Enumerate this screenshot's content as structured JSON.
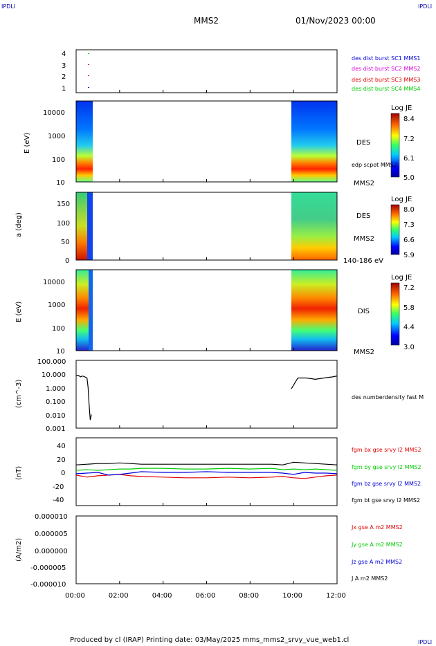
{
  "corner_labels": {
    "tl": "IPDLI",
    "tr": "IPDLI",
    "br": "IPDLI"
  },
  "header": {
    "spacecraft": "MMS2",
    "datetime": "01/Nov/2023 00:00"
  },
  "footer": {
    "text": "Produced by cl (IRAP)   Printing date: 03/May/2025   mms_mms2_srvy_vue_web1.cl"
  },
  "x_axis": {
    "ticks": [
      "00:00",
      "02:00",
      "04:00",
      "06:00",
      "08:00",
      "10:00",
      "12:00"
    ],
    "range_hours": [
      0,
      12
    ]
  },
  "colors": {
    "red": "#e00000",
    "green": "#00cc00",
    "blue": "#0000dd",
    "magenta": "#dd00dd",
    "black": "#000000"
  },
  "chart_data": [
    {
      "type": "scatter",
      "name": "burst availability",
      "yticks": [
        "4",
        "3",
        "2",
        "1"
      ],
      "legend": [
        {
          "label": "des dist burst SC1 MMS1",
          "color": "#0000dd"
        },
        {
          "label": "des dist burst SC2 MMS2",
          "color": "#dd00dd"
        },
        {
          "label": "des dist burst SC3 MMS3",
          "color": "#e00000"
        },
        {
          "label": "des dist burst SC4 MMS4",
          "color": "#00cc00"
        }
      ]
    },
    {
      "type": "heatmap",
      "name": "DES energy spectrogram",
      "ylabel": "E (eV)",
      "yscale": "log",
      "ylim": [
        10,
        30000
      ],
      "yticks": [
        "10000",
        "1000",
        "100",
        "10"
      ],
      "data_intervals_hours": [
        [
          0,
          0.72
        ],
        [
          9.9,
          12
        ]
      ],
      "colorbar": {
        "title": "Log JE",
        "ticks": [
          "8.4",
          "7.2",
          "6.1",
          "5.0"
        ],
        "range": [
          5.0,
          8.4
        ]
      },
      "labels": [
        "DES",
        "edp scpot MMS2",
        "MMS2"
      ]
    },
    {
      "type": "heatmap",
      "name": "DES pitch angle",
      "ylabel": "a (deg)",
      "ylim": [
        0,
        180
      ],
      "yticks": [
        "150",
        "100",
        "50",
        "0"
      ],
      "data_intervals_hours": [
        [
          0,
          0.72
        ],
        [
          9.9,
          12
        ]
      ],
      "colorbar": {
        "title": "Log JE",
        "ticks": [
          "8.0",
          "7.3",
          "6.6",
          "5.9"
        ],
        "range": [
          5.9,
          8.0
        ]
      },
      "labels": [
        "DES",
        "MMS2",
        "140-186 eV"
      ]
    },
    {
      "type": "heatmap",
      "name": "DIS energy spectrogram",
      "ylabel": "E (eV)",
      "yscale": "log",
      "ylim": [
        10,
        30000
      ],
      "yticks": [
        "10000",
        "1000",
        "100",
        "10"
      ],
      "data_intervals_hours": [
        [
          0,
          0.72
        ],
        [
          9.9,
          12
        ]
      ],
      "colorbar": {
        "title": "Log JE",
        "ticks": [
          "7.2",
          "5.8",
          "4.4",
          "3.0"
        ],
        "range": [
          3.0,
          7.2
        ]
      },
      "labels": [
        "DIS",
        "MMS2"
      ]
    },
    {
      "type": "line",
      "name": "density",
      "ylabel": "(cm^-3)",
      "yscale": "log",
      "ylim": [
        0.001,
        100
      ],
      "yticks": [
        "100.000",
        "10.000",
        "1.000",
        "0.100",
        "0.010",
        "0.001"
      ],
      "series": [
        {
          "name": "des numberdensity fast M",
          "color": "#000000",
          "x": [
            0.0,
            0.1,
            0.2,
            0.3,
            0.4,
            0.5,
            0.55,
            0.6,
            0.65,
            0.7,
            9.9,
            10.2,
            10.6,
            11.0,
            11.4,
            11.8,
            12.0
          ],
          "y": [
            7,
            8,
            6,
            7,
            6,
            5,
            1,
            0.05,
            0.004,
            0.01,
            0.8,
            5,
            5,
            4,
            5,
            6,
            7
          ]
        }
      ]
    },
    {
      "type": "line",
      "name": "magnetic field",
      "ylabel": "(nT)",
      "ylim": [
        -50,
        50
      ],
      "yticks": [
        "40",
        "20",
        "0",
        "-20",
        "-40"
      ],
      "series": [
        {
          "name": "fgm bx gse srvy l2 MMS2",
          "color": "#e00000",
          "x": [
            0,
            0.5,
            1,
            1.5,
            2,
            2.5,
            3,
            4,
            5,
            6,
            7,
            8,
            9,
            9.5,
            10,
            10.5,
            11,
            11.5,
            12
          ],
          "y": [
            -5,
            -8,
            -6,
            -5,
            -4,
            -6,
            -7,
            -8,
            -9,
            -9,
            -8,
            -9,
            -8,
            -7,
            -9,
            -10,
            -8,
            -6,
            -5
          ]
        },
        {
          "name": "fgm by gse srvy l2 MMS2",
          "color": "#00cc00",
          "x": [
            0,
            0.5,
            1,
            1.5,
            2,
            2.5,
            3,
            4,
            5,
            6,
            7,
            8,
            9,
            9.5,
            10,
            10.5,
            11,
            11.5,
            12
          ],
          "y": [
            2,
            3,
            2,
            3,
            4,
            4,
            5,
            5,
            4,
            4,
            5,
            4,
            5,
            3,
            4,
            3,
            4,
            3,
            2
          ]
        },
        {
          "name": "fgm bz gse srvy l2 MMS2",
          "color": "#0000dd",
          "x": [
            0,
            0.5,
            1,
            1.5,
            2,
            2.5,
            3,
            4,
            5,
            6,
            7,
            8,
            9,
            9.5,
            10,
            10.5,
            11,
            11.5,
            12
          ],
          "y": [
            -3,
            -2,
            -1,
            -5,
            -4,
            -2,
            0,
            -1,
            -1,
            0,
            -1,
            -1,
            -1,
            -2,
            -4,
            -1,
            -2,
            -2,
            -3
          ]
        },
        {
          "name": "fgm bt gse srvy l2 MMS2",
          "color": "#000000",
          "x": [
            0,
            0.5,
            1,
            1.5,
            2,
            2.5,
            3,
            4,
            5,
            6,
            7,
            8,
            9,
            9.5,
            10,
            10.5,
            11,
            11.5,
            12
          ],
          "y": [
            10,
            11,
            12,
            12,
            13,
            12,
            11,
            11,
            11,
            11,
            11,
            11,
            11,
            10,
            14,
            13,
            12,
            11,
            10
          ]
        }
      ]
    },
    {
      "type": "line",
      "name": "current density",
      "ylabel": "(A/m2)",
      "ylim": [
        -1e-05,
        1e-05
      ],
      "yticks": [
        "0.000010",
        "0.000005",
        "0.000000",
        "-0.000005",
        "-0.000010"
      ],
      "series": [
        {
          "name": "Jx gse A m2 MMS2",
          "color": "#e00000",
          "x": [
            0,
            12
          ],
          "y": [
            0,
            0
          ]
        },
        {
          "name": "Jy gse A m2 MMS2",
          "color": "#00cc00",
          "x": [
            0,
            12
          ],
          "y": [
            0,
            0
          ]
        },
        {
          "name": "Jz gse A m2 MMS2",
          "color": "#0000dd",
          "x": [
            0,
            12
          ],
          "y": [
            0,
            0
          ]
        },
        {
          "name": "J A m2 MMS2",
          "color": "#000000",
          "x": [
            0,
            12
          ],
          "y": [
            0,
            0
          ]
        }
      ]
    }
  ]
}
